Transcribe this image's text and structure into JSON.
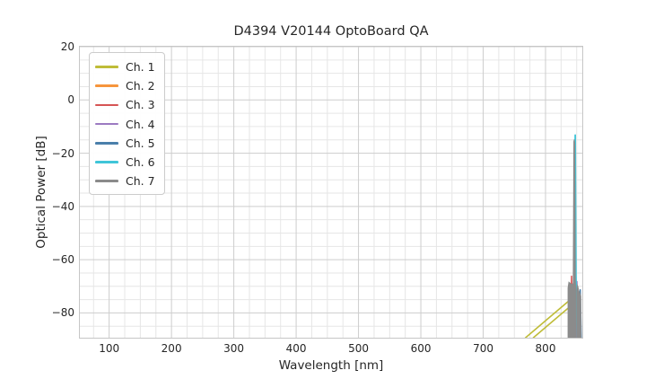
{
  "figure": {
    "title": "D4394 V20144 OptoBoard QA",
    "xlabel": "Wavelength [nm]",
    "ylabel": "Optical Power [dB]"
  },
  "legend": {
    "position": "upper-left",
    "entries": [
      {
        "label": "Ch. 1",
        "color": "#bfbc38"
      },
      {
        "label": "Ch. 2",
        "color": "#f6953c"
      },
      {
        "label": "Ch. 3",
        "color": "#d65454"
      },
      {
        "label": "Ch. 4",
        "color": "#9c7ac1"
      },
      {
        "label": "Ch. 5",
        "color": "#4a7fab"
      },
      {
        "label": "Ch. 6",
        "color": "#3fc5d8"
      },
      {
        "label": "Ch. 7",
        "color": "#8b8b8b"
      }
    ]
  },
  "chart_data": {
    "type": "line",
    "title": "D4394 V20144 OptoBoard QA",
    "xlabel": "Wavelength [nm]",
    "ylabel": "Optical Power [dB]",
    "xlim": [
      53,
      859
    ],
    "ylim": [
      -89.3,
      20
    ],
    "x_ticks": {
      "values": [
        100,
        200,
        300,
        400,
        500,
        600,
        700,
        800
      ],
      "labels": [
        "100",
        "200",
        "300",
        "400",
        "500",
        "600",
        "700",
        "800"
      ]
    },
    "y_ticks": {
      "values": [
        20,
        0,
        -20,
        -40,
        -60,
        -80
      ],
      "labels": [
        "20",
        "0",
        "−20",
        "−40",
        "−60",
        "−80"
      ]
    },
    "grid": {
      "major_color": "#cdcdcd",
      "minor_color": "#e6e6e6",
      "x_minor_step": 25,
      "y_minor_step": 5,
      "grid_on": true
    },
    "legend_position": "upper-left",
    "series": [
      {
        "name": "Ch. 1",
        "color": "#bfbc38",
        "peak_nm": 843,
        "peak_db": -74.3,
        "paths": [
          {
            "kind": "line",
            "width": 1.6,
            "points": [
              [
                768,
                -89.3
              ],
              [
                843.3,
                -74.3
              ]
            ]
          },
          {
            "kind": "line",
            "width": 1.6,
            "points": [
              [
                780.5,
                -89.3
              ],
              [
                843.3,
                -76.8
              ]
            ]
          }
        ]
      },
      {
        "name": "Ch. 2",
        "color": "#f6953c",
        "peak_nm": null,
        "peak_db": null,
        "paths": []
      },
      {
        "name": "Ch. 3",
        "color": "#d65454",
        "peak_nm": 842,
        "peak_db": -66.2,
        "paths": [
          {
            "kind": "line",
            "width": 1.5,
            "points": [
              [
                840.2,
                -89.3
              ],
              [
                841.8,
                -66.2
              ],
              [
                843.4,
                -89.3
              ]
            ]
          }
        ]
      },
      {
        "name": "Ch. 4",
        "color": "#9c7ac1",
        "peak_nm": 850,
        "peak_db": -68.2,
        "paths": [
          {
            "kind": "line",
            "width": 1.5,
            "points": [
              [
                848.9,
                -89.3
              ],
              [
                850.4,
                -68.2
              ],
              [
                851.9,
                -89.3
              ]
            ]
          }
        ]
      },
      {
        "name": "Ch. 5",
        "color": "#4a7fab",
        "peak_nm": 856,
        "peak_db": -71.3,
        "paths": [
          {
            "kind": "line",
            "width": 1.5,
            "points": [
              [
                854.2,
                -89.3
              ],
              [
                855.7,
                -71.3
              ],
              [
                857.2,
                -89.3
              ]
            ]
          }
        ]
      },
      {
        "name": "Ch. 6",
        "color": "#3fc5d8",
        "peak_nm": 847.6,
        "peak_db": -13.2,
        "paths": [
          {
            "kind": "line",
            "width": 1.8,
            "points": [
              [
                844.6,
                -89.3
              ],
              [
                846.5,
                -66
              ],
              [
                847.65,
                -13.2
              ],
              [
                848.8,
                -66
              ],
              [
                850.7,
                -89.3
              ]
            ]
          }
        ]
      },
      {
        "name": "Ch. 7",
        "color": "#8b8b8b",
        "peak_nm": 846,
        "peak_db": -14.8,
        "paths": [
          {
            "kind": "area",
            "points": [
              [
                836,
                -89.3
              ],
              [
                836,
                -70.6
              ],
              [
                837.4,
                -68.4
              ],
              [
                842.2,
                -69.3
              ],
              [
                844.3,
                -68.9
              ],
              [
                845.3,
                -15.6
              ],
              [
                846.15,
                -14.8
              ],
              [
                847.0,
                -16.2
              ],
              [
                847.9,
                -67.2
              ],
              [
                848.3,
                -69.8
              ],
              [
                848.3,
                -89.3
              ]
            ]
          },
          {
            "kind": "area",
            "points": [
              [
                849.8,
                -89.3
              ],
              [
                849.8,
                -71.5
              ],
              [
                850.7,
                -69.4
              ],
              [
                851.9,
                -70.0
              ],
              [
                853.3,
                -71.6
              ],
              [
                855.1,
                -72.6
              ],
              [
                856.7,
                -73.6
              ],
              [
                856.9,
                -89.3
              ]
            ]
          }
        ]
      }
    ]
  }
}
